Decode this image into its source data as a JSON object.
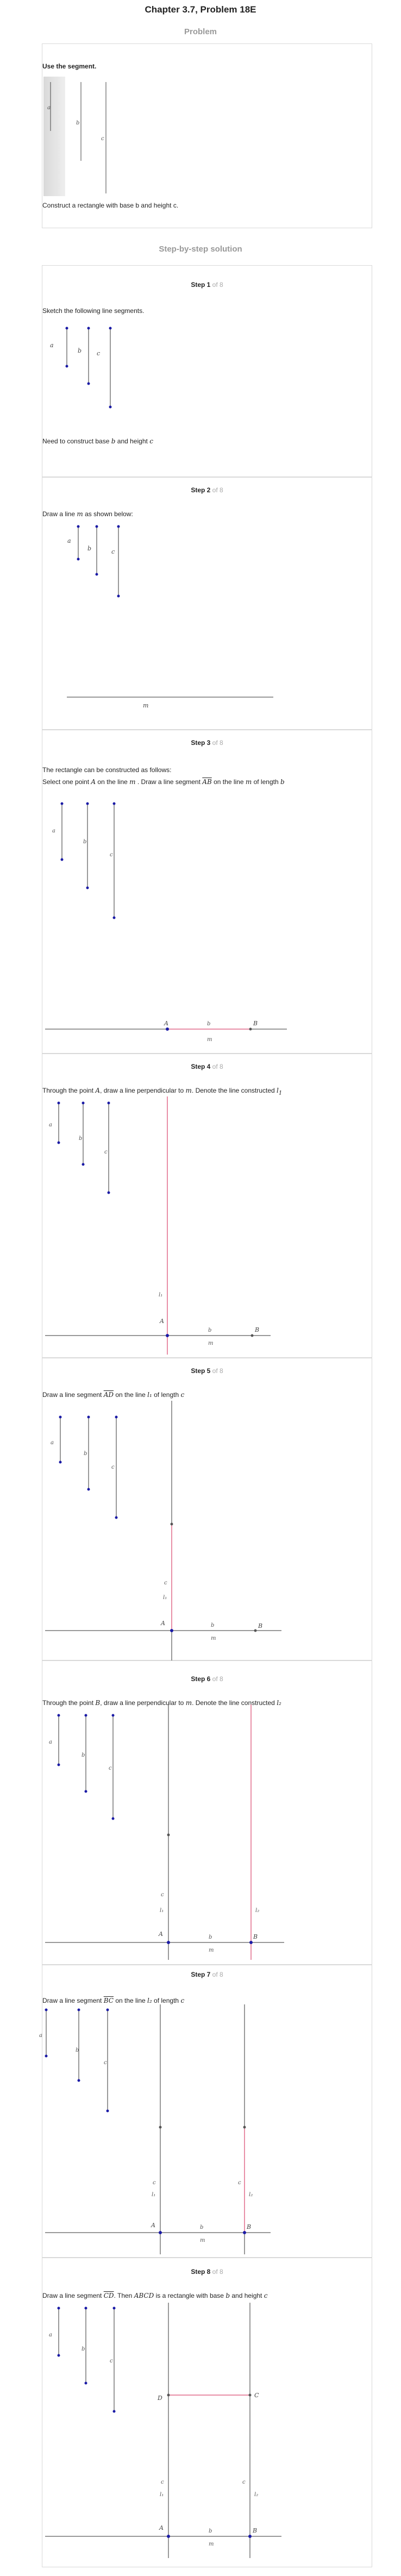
{
  "header": {
    "title": "Chapter 3.7, Problem 18E"
  },
  "problem": {
    "section_label": "Problem",
    "heading": "Use the segment.",
    "segment_labels": [
      "a",
      "b",
      "c"
    ],
    "task": "Construct a rectangle with base b and height c."
  },
  "solution": {
    "section_label": "Step-by-step solution",
    "steps": [
      {
        "title": "Step 1",
        "of": "of 8",
        "text1": "Sketch the following line segments.",
        "text2_pre": "Need to construct base",
        "text2_b": "b",
        "text2_mid": "and height",
        "text2_c": "c"
      },
      {
        "title": "Step 2",
        "of": "of 8",
        "text_pre": "Draw a line",
        "text_m": "m",
        "text_post": "as shown below:",
        "line_label": "m"
      },
      {
        "title": "Step 3",
        "of": "of 8",
        "text1": "The rectangle can be constructed as follows:",
        "text2_a": "Select one point",
        "text2_A": "A",
        "text2_b": "on the line",
        "text2_m": "m",
        "text2_c": ". Draw a line segment",
        "text2_AB": "AB",
        "text2_d": "on the line",
        "text2_m2": "m",
        "text2_e": "of length",
        "text2_len": "b",
        "labels": {
          "A": "A",
          "B": "B",
          "b": "b",
          "m": "m"
        }
      },
      {
        "title": "Step 4",
        "of": "of 8",
        "text_a": "Through the point",
        "text_A": "A",
        "text_b": ", draw a line perpendicular to",
        "text_m": "m",
        "text_c": ". Denote the line constructed",
        "text_l": "l",
        "text_sub": "1",
        "labels": {
          "A": "A",
          "B": "B",
          "b": "b",
          "m": "m",
          "l1": "l₁"
        }
      },
      {
        "title": "Step 5",
        "of": "of 8",
        "text_a": "Draw a line segment",
        "text_AD": "AD",
        "text_b": "on the line",
        "text_l": "l₁",
        "text_c": "of length",
        "text_len": "c",
        "labels": {
          "A": "A",
          "B": "B",
          "b": "b",
          "m": "m",
          "l1": "l₁",
          "c": "c"
        }
      },
      {
        "title": "Step 6",
        "of": "of 8",
        "text_a": "Through the point",
        "text_B": "B",
        "text_b": ", draw a line perpendicular to",
        "text_m": "m",
        "text_c": ". Denote the line constructed",
        "text_l": "l₂",
        "labels": {
          "A": "A",
          "B": "B",
          "b": "b",
          "m": "m",
          "l1": "l₁",
          "l2": "l₂",
          "c": "c"
        }
      },
      {
        "title": "Step 7",
        "of": "of 8",
        "text_a": "Draw a line segment",
        "text_BC": "BC",
        "text_b": "on the line",
        "text_l": "l₂",
        "text_c": "of length",
        "text_len": "c",
        "labels": {
          "A": "A",
          "B": "B",
          "b": "b",
          "m": "m",
          "l1": "l₁",
          "l2": "l₂",
          "c": "c"
        }
      },
      {
        "title": "Step 8",
        "of": "of 8",
        "text_a": "Draw a line segment",
        "text_CD": "CD",
        "text_b": ". Then",
        "text_ABCD": "ABCD",
        "text_c": "is a rectangle with base",
        "text_base": "b",
        "text_d": "and height",
        "text_height": "c",
        "labels": {
          "A": "A",
          "B": "B",
          "C": "C",
          "D": "D",
          "b": "b",
          "m": "m",
          "l1": "l₁",
          "l2": "l₂",
          "c": "c"
        }
      }
    ]
  },
  "colors": {
    "segment_endpoint": "#1a1aa6",
    "construction_line": "#e06a8a",
    "axis_line": "#333333",
    "card_border": "#d9d9d9"
  }
}
